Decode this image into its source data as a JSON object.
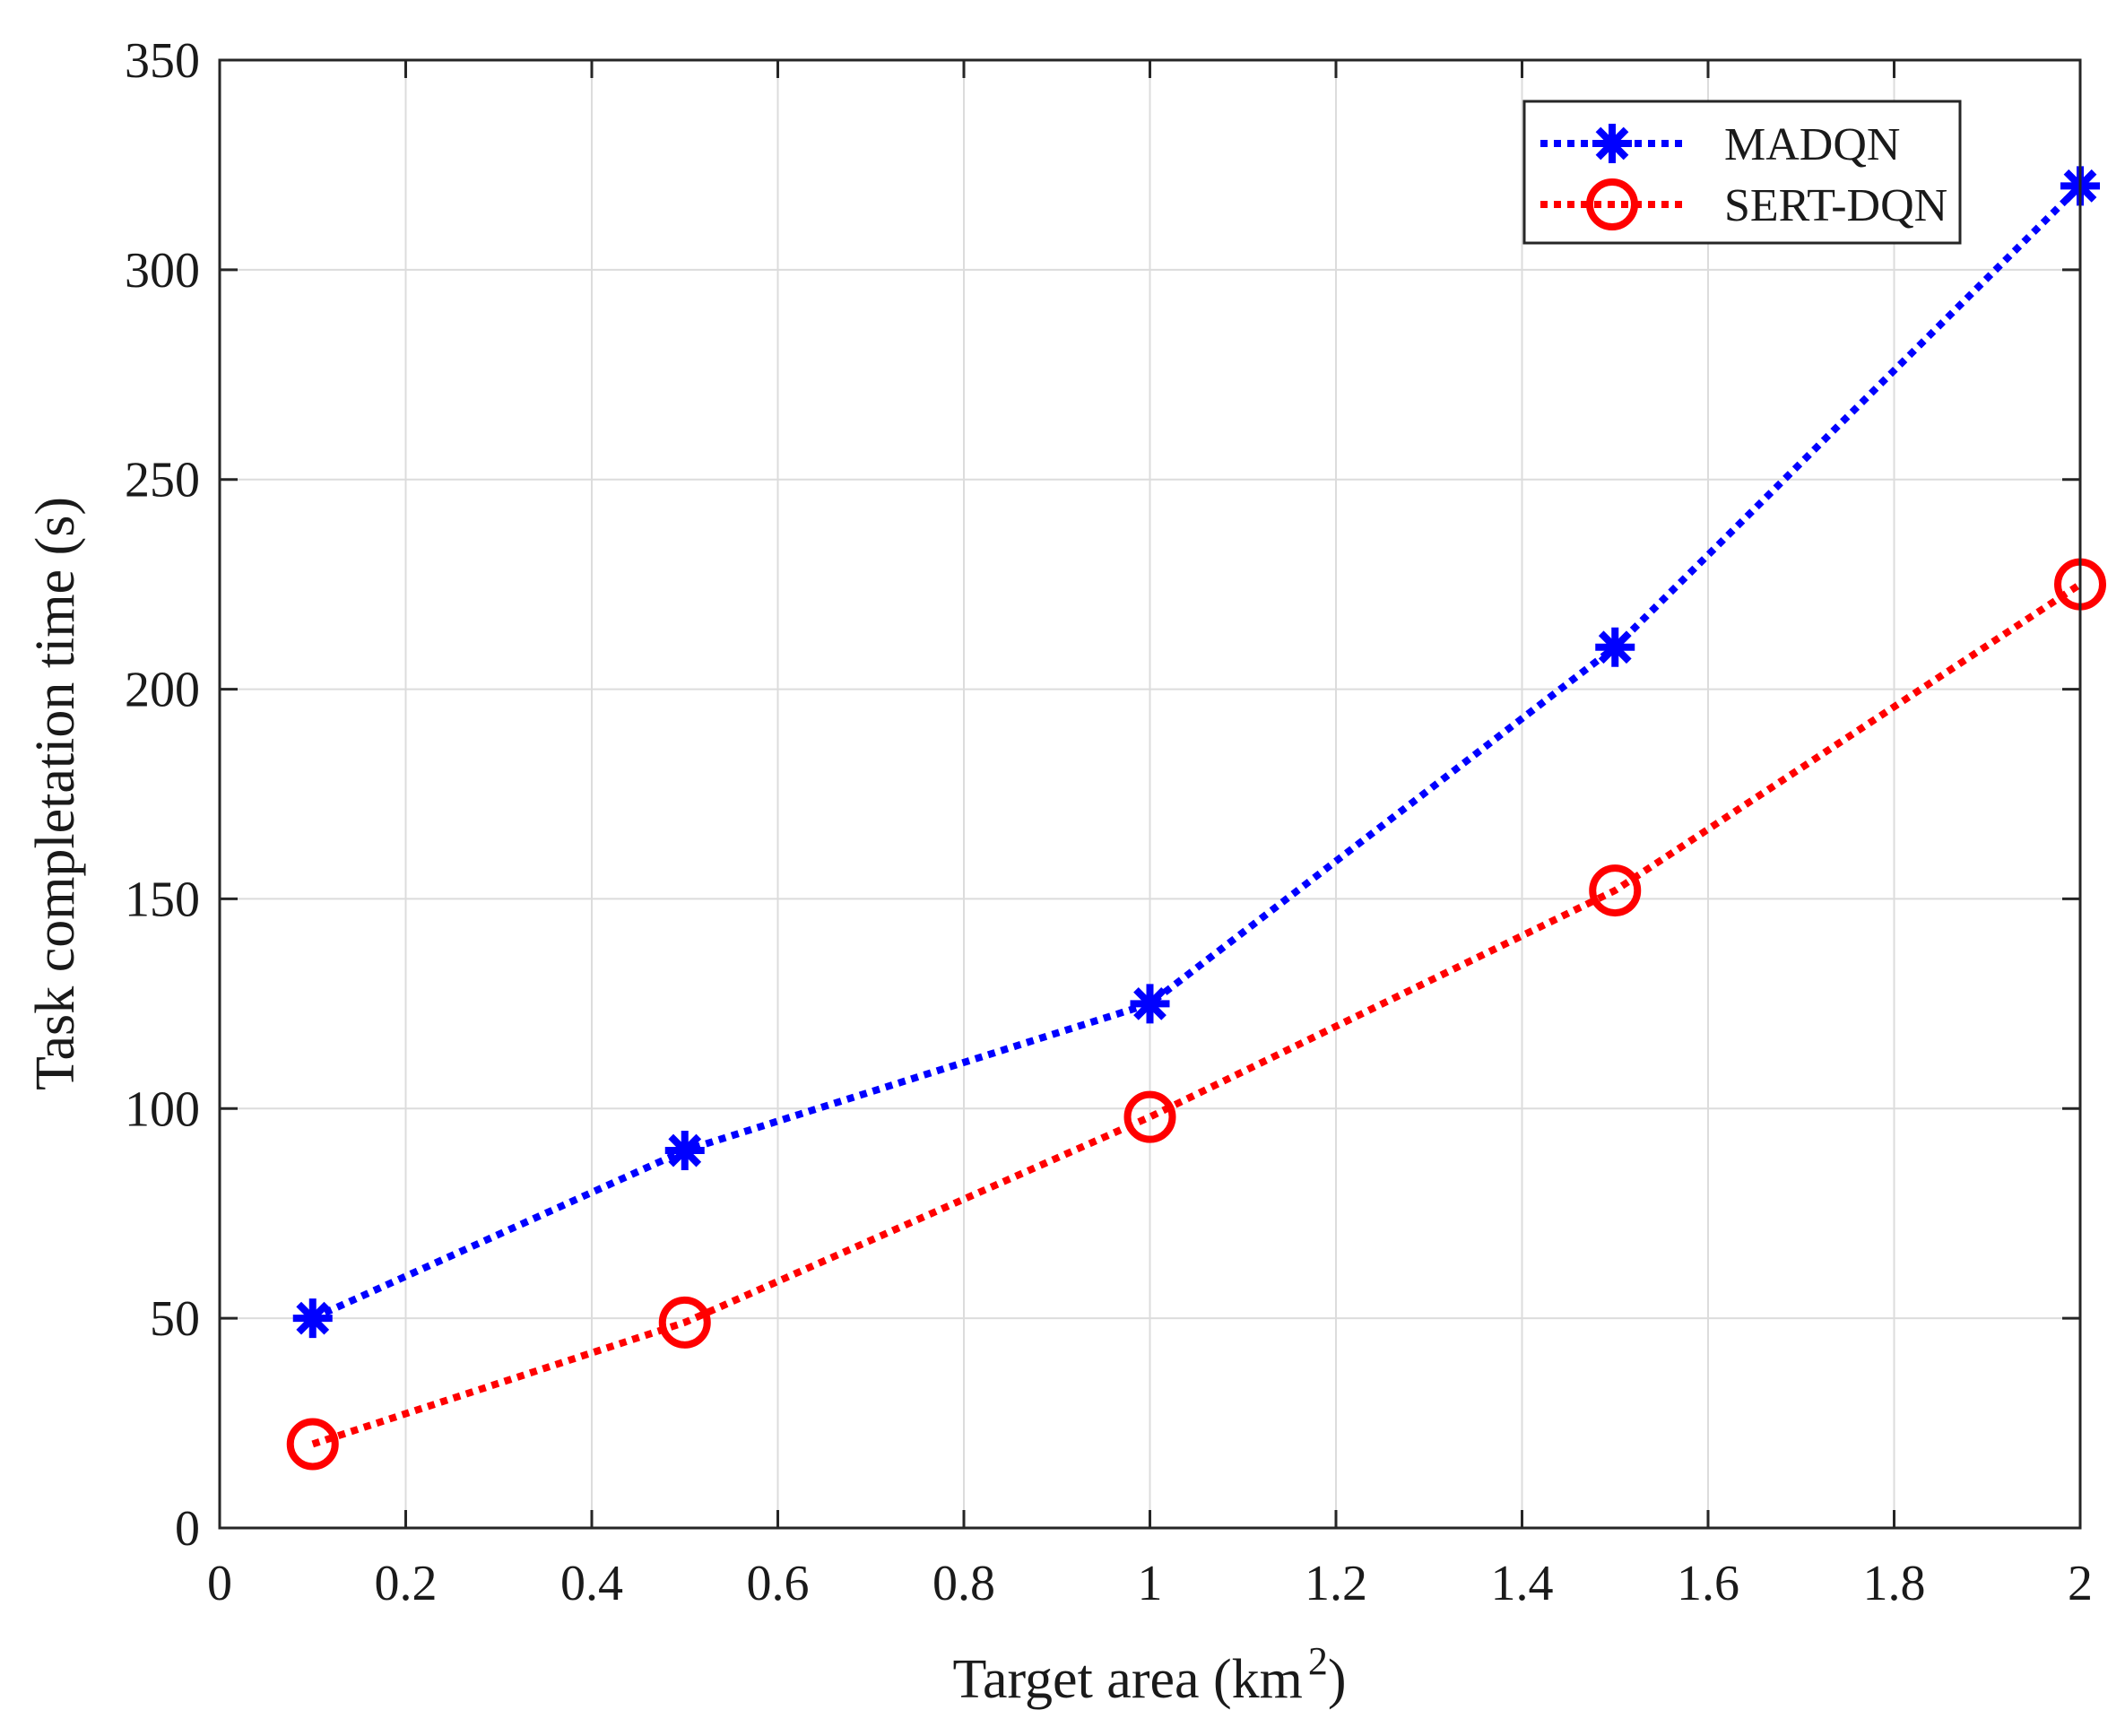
{
  "chart_data": {
    "type": "line",
    "title": "",
    "xlabel": "Target area (km",
    "xlabel_superscript": "2",
    "xlabel_close": ")",
    "ylabel": "Task completation time (s)",
    "xlim": [
      0,
      2
    ],
    "ylim": [
      0,
      350
    ],
    "grid": true,
    "legend_position": "top-right",
    "x_ticks": [
      0,
      0.2,
      0.4,
      0.6,
      0.8,
      1,
      1.2,
      1.4,
      1.6,
      1.8,
      2
    ],
    "x_tick_labels": [
      "0",
      "0.2",
      "0.4",
      "0.6",
      "0.8",
      "1",
      "1.2",
      "1.4",
      "1.6",
      "1.8",
      "2"
    ],
    "y_ticks": [
      0,
      50,
      100,
      150,
      200,
      250,
      300,
      350
    ],
    "y_tick_labels": [
      "0",
      "50",
      "100",
      "150",
      "200",
      "250",
      "300",
      "350"
    ],
    "x": [
      0.1,
      0.5,
      1,
      1.5,
      2
    ],
    "series": [
      {
        "name": "MADQN",
        "marker": "asterisk",
        "line_style": "dotted",
        "color": "#0000ff",
        "values": [
          50,
          90,
          125,
          210,
          320
        ]
      },
      {
        "name": "SERT-DQN",
        "marker": "circle",
        "line_style": "dotted",
        "color": "#ff0000",
        "values": [
          20,
          49,
          98,
          152,
          225
        ]
      }
    ]
  }
}
